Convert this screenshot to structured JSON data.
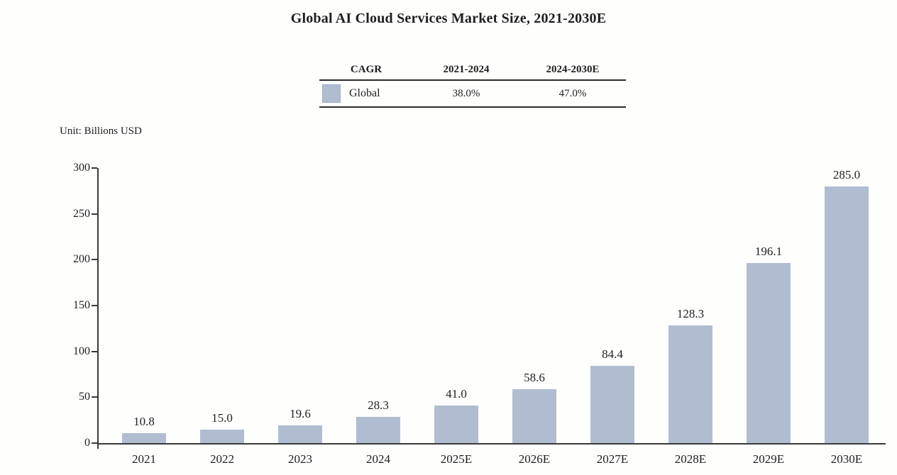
{
  "title": "Global AI Cloud Services Market Size, 2021-2030E",
  "unit_label": "Unit: Billions USD",
  "cagr_table": {
    "col_headers": [
      "CAGR",
      "2021-2024",
      "2024-2030E"
    ],
    "rows": [
      {
        "label": "Global",
        "values": [
          "38.0%",
          "47.0%"
        ]
      }
    ]
  },
  "colors": {
    "bar_fill": "#b0bdd1",
    "axis": "#3a3a3a",
    "text": "#1e1e1e"
  },
  "chart_data": {
    "type": "bar",
    "title": "Global AI Cloud Services Market Size, 2021-2030E",
    "categories": [
      "2021",
      "2022",
      "2023",
      "2024",
      "2025E",
      "2026E",
      "2027E",
      "2028E",
      "2029E",
      "2030E"
    ],
    "values": [
      10.8,
      15.0,
      19.6,
      28.3,
      41.0,
      58.6,
      84.4,
      128.3,
      196.1,
      285.0
    ],
    "data_labels": [
      "10.8",
      "15.0",
      "19.6",
      "28.3",
      "41.0",
      "58.6",
      "84.4",
      "128.3",
      "196.1",
      "285.0"
    ],
    "xlabel": "",
    "ylabel": "Unit: Billions USD",
    "ylim": [
      0,
      300
    ],
    "yticks": [
      0,
      50,
      100,
      150,
      200,
      250,
      300
    ],
    "bar_color": "#b0bdd1",
    "grid": false,
    "legend": [
      {
        "name": "Global",
        "color": "#b0bdd1",
        "cagr_2021_2024": "38.0%",
        "cagr_2024_2030E": "47.0%"
      }
    ],
    "legend_position": "top-table"
  }
}
